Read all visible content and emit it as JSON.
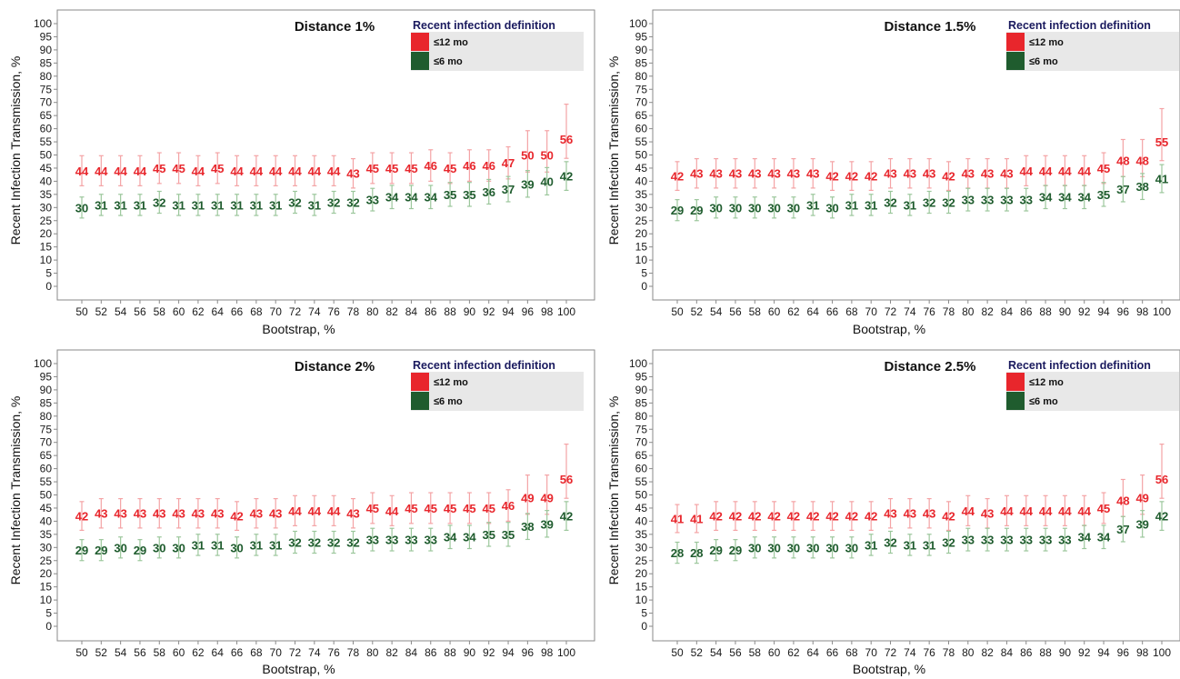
{
  "colors": {
    "red": "#e8262c",
    "green": "#1f5c2e",
    "frame": "#8a8a8a",
    "legend_bg": "#e8e8e8",
    "legend_title": "#1a1a5e",
    "tick_text": "#1a1a1a"
  },
  "chart_data": [
    {
      "type": "scatter",
      "title": "Distance 1%",
      "xlabel": "Bootstrap, %",
      "ylabel": "Recent Infection Transmission, %",
      "ylim": [
        0,
        100
      ],
      "grid": false,
      "legend_position": "top-right",
      "legend_title": "Recent infection definition",
      "x": [
        50,
        52,
        54,
        56,
        58,
        60,
        62,
        64,
        66,
        68,
        70,
        72,
        74,
        76,
        78,
        80,
        82,
        84,
        86,
        88,
        90,
        92,
        94,
        96,
        98,
        100
      ],
      "series": [
        {
          "name": "≤12 mo",
          "color": "#e8262c",
          "values": [
            44,
            44,
            44,
            44,
            45,
            45,
            44,
            45,
            44,
            44,
            44,
            44,
            44,
            44,
            43,
            45,
            45,
            45,
            46,
            45,
            46,
            46,
            47,
            50,
            50,
            56
          ]
        },
        {
          "name": "≤6 mo",
          "color": "#1f5c2e",
          "values": [
            30,
            31,
            31,
            31,
            32,
            31,
            31,
            31,
            31,
            31,
            31,
            32,
            31,
            32,
            32,
            33,
            34,
            34,
            34,
            35,
            35,
            36,
            37,
            39,
            40,
            42
          ]
        }
      ]
    },
    {
      "type": "scatter",
      "title": "Distance 1.5%",
      "xlabel": "Bootstrap, %",
      "ylabel": "Recent Infection Transmission, %",
      "ylim": [
        0,
        100
      ],
      "grid": false,
      "legend_position": "top-right",
      "legend_title": "Recent infection definition",
      "x": [
        50,
        52,
        54,
        56,
        58,
        60,
        62,
        64,
        66,
        68,
        70,
        72,
        74,
        76,
        78,
        80,
        82,
        84,
        86,
        88,
        90,
        92,
        94,
        96,
        98,
        100
      ],
      "series": [
        {
          "name": "≤12 mo",
          "color": "#e8262c",
          "values": [
            42,
            43,
            43,
            43,
            43,
            43,
            43,
            43,
            42,
            42,
            42,
            43,
            43,
            43,
            42,
            43,
            43,
            43,
            44,
            44,
            44,
            44,
            45,
            48,
            48,
            55
          ]
        },
        {
          "name": "≤6 mo",
          "color": "#1f5c2e",
          "values": [
            29,
            29,
            30,
            30,
            30,
            30,
            30,
            31,
            30,
            31,
            31,
            32,
            31,
            32,
            32,
            33,
            33,
            33,
            33,
            34,
            34,
            34,
            35,
            37,
            38,
            41
          ]
        }
      ]
    },
    {
      "type": "scatter",
      "title": "Distance 2%",
      "xlabel": "Bootstrap, %",
      "ylabel": "Recent Infection Transmission, %",
      "ylim": [
        0,
        100
      ],
      "grid": false,
      "legend_position": "top-right",
      "legend_title": "Recent infection definition",
      "x": [
        50,
        52,
        54,
        56,
        58,
        60,
        62,
        64,
        66,
        68,
        70,
        72,
        74,
        76,
        78,
        80,
        82,
        84,
        86,
        88,
        90,
        92,
        94,
        96,
        98,
        100
      ],
      "series": [
        {
          "name": "≤12 mo",
          "color": "#e8262c",
          "values": [
            42,
            43,
            43,
            43,
            43,
            43,
            43,
            43,
            42,
            43,
            43,
            44,
            44,
            44,
            43,
            45,
            44,
            45,
            45,
            45,
            45,
            45,
            46,
            49,
            49,
            56
          ]
        },
        {
          "name": "≤6 mo",
          "color": "#1f5c2e",
          "values": [
            29,
            29,
            30,
            29,
            30,
            30,
            31,
            31,
            30,
            31,
            31,
            32,
            32,
            32,
            32,
            33,
            33,
            33,
            33,
            34,
            34,
            35,
            35,
            38,
            39,
            42
          ]
        }
      ]
    },
    {
      "type": "scatter",
      "title": "Distance 2.5%",
      "xlabel": "Bootstrap, %",
      "ylabel": "Recent Infection Transmission, %",
      "ylim": [
        0,
        100
      ],
      "grid": false,
      "legend_position": "top-right",
      "legend_title": "Recent infection definition",
      "x": [
        50,
        52,
        54,
        56,
        58,
        60,
        62,
        64,
        66,
        68,
        70,
        72,
        74,
        76,
        78,
        80,
        82,
        84,
        86,
        88,
        90,
        92,
        94,
        96,
        98,
        100
      ],
      "series": [
        {
          "name": "≤12 mo",
          "color": "#e8262c",
          "values": [
            41,
            41,
            42,
            42,
            42,
            42,
            42,
            42,
            42,
            42,
            42,
            43,
            43,
            43,
            42,
            44,
            43,
            44,
            44,
            44,
            44,
            44,
            45,
            48,
            49,
            56
          ]
        },
        {
          "name": "≤6 mo",
          "color": "#1f5c2e",
          "values": [
            28,
            28,
            29,
            29,
            30,
            30,
            30,
            30,
            30,
            30,
            31,
            32,
            31,
            31,
            32,
            33,
            33,
            33,
            33,
            33,
            33,
            34,
            34,
            37,
            39,
            42
          ]
        }
      ]
    }
  ]
}
